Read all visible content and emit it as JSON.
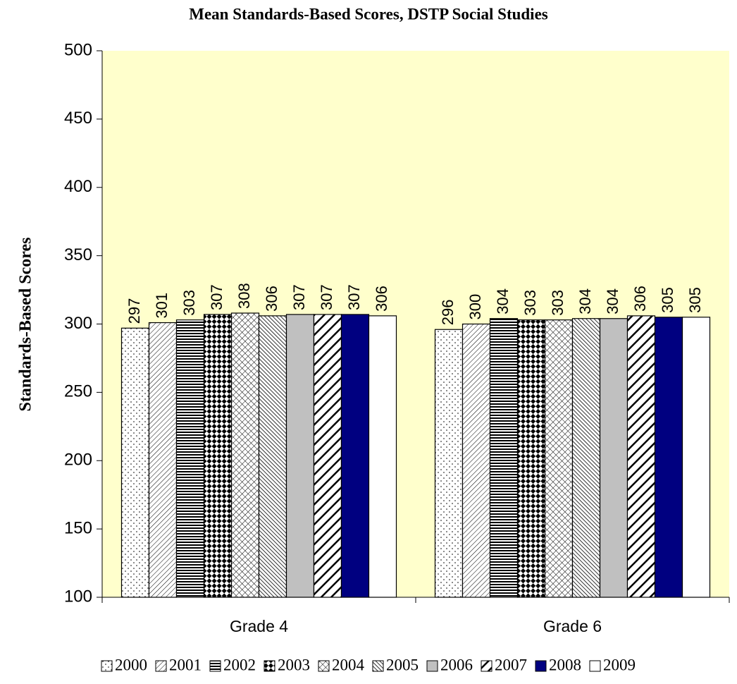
{
  "chart_data": {
    "type": "bar",
    "title": "Mean Standards-Based Scores, DSTP Social Studies",
    "y_label": "Standards-Based Scores",
    "categories": [
      "Grade 4",
      "Grade 6"
    ],
    "series": [
      {
        "name": "2000",
        "color": "#ffffff",
        "pattern": "dots",
        "values": [
          297,
          296
        ]
      },
      {
        "name": "2001",
        "color": "#ffffff",
        "pattern": "fine-diagonal",
        "values": [
          301,
          300
        ]
      },
      {
        "name": "2002",
        "color": "#ffffff",
        "pattern": "horizontal",
        "values": [
          303,
          304
        ]
      },
      {
        "name": "2003",
        "color": "#ffffff",
        "pattern": "checker",
        "values": [
          307,
          303
        ]
      },
      {
        "name": "2004",
        "color": "#ffffff",
        "pattern": "crosshatch",
        "values": [
          308,
          303
        ]
      },
      {
        "name": "2005",
        "color": "#ffffff",
        "pattern": "back-diagonal",
        "values": [
          306,
          304
        ]
      },
      {
        "name": "2006",
        "color": "#c0c0c0",
        "pattern": "solid",
        "values": [
          307,
          304
        ]
      },
      {
        "name": "2007",
        "color": "#ffffff",
        "pattern": "wide-diagonal",
        "values": [
          307,
          306
        ]
      },
      {
        "name": "2008",
        "color": "#000080",
        "pattern": "solid",
        "values": [
          307,
          305
        ]
      },
      {
        "name": "2009",
        "color": "#ffffff",
        "pattern": "solid",
        "values": [
          306,
          305
        ]
      }
    ],
    "ylim": [
      100,
      500
    ],
    "yticks": [
      100,
      150,
      200,
      250,
      300,
      350,
      400,
      450,
      500
    ],
    "plot_background": "#ffffcc",
    "legend": "bottom"
  }
}
